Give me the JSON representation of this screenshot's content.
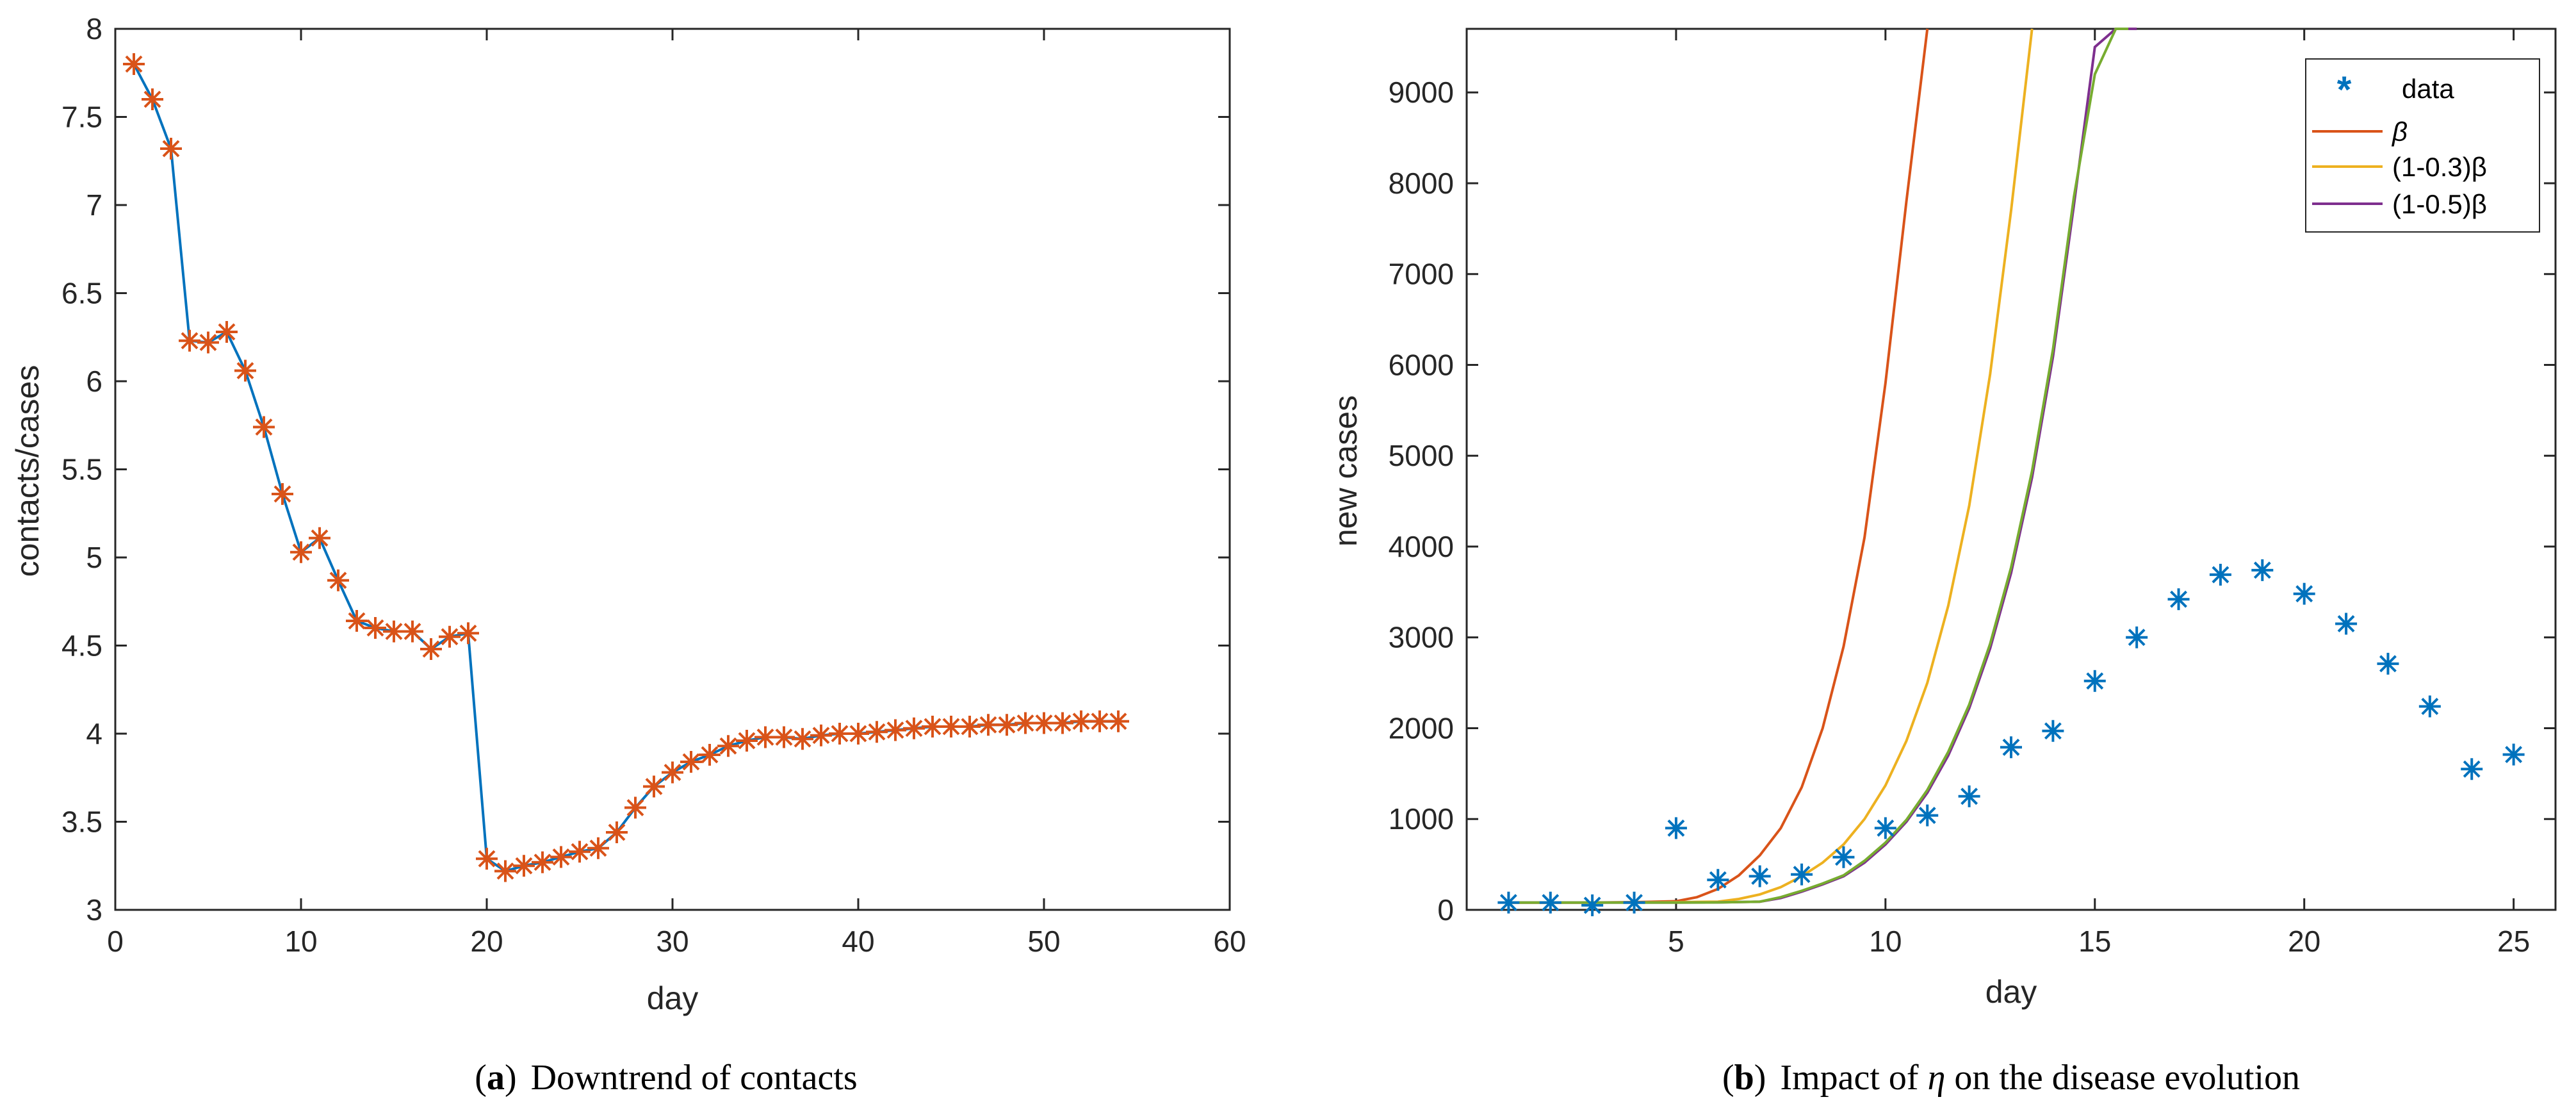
{
  "chart_data": [
    {
      "type": "line",
      "caption": {
        "open": "(",
        "letter": "a",
        "close": ")",
        "text": "Downtrend of contacts"
      },
      "xlabel": "day",
      "ylabel": "contacts/cases",
      "xlim": [
        0,
        60
      ],
      "ylim": [
        3,
        8
      ],
      "xticks": [
        "0",
        "10",
        "20",
        "30",
        "40",
        "50",
        "60"
      ],
      "yticks": [
        "3",
        "3.5",
        "4",
        "4.5",
        "5",
        "5.5",
        "6",
        "6.5",
        "7",
        "7.5",
        "8"
      ],
      "line_color": "#0072BD",
      "marker_color": "#D95319",
      "x": [
        1,
        2,
        3,
        4,
        5,
        6,
        7,
        8,
        9,
        10,
        11,
        12,
        13,
        14,
        15,
        16,
        17,
        18,
        19,
        20,
        21,
        22,
        23,
        24,
        25,
        26,
        27,
        28,
        29,
        30,
        31,
        32,
        33,
        34,
        35,
        36,
        37,
        38,
        39,
        40,
        41,
        42,
        43,
        44,
        45,
        46,
        47,
        48,
        49,
        50,
        51,
        52,
        53,
        54
      ],
      "y": [
        7.8,
        7.6,
        7.32,
        6.23,
        6.22,
        6.28,
        6.06,
        5.74,
        5.36,
        5.03,
        5.11,
        4.87,
        4.64,
        4.6,
        4.58,
        4.58,
        4.48,
        4.55,
        4.57,
        3.29,
        3.22,
        3.25,
        3.27,
        3.3,
        3.33,
        3.35,
        3.44,
        3.58,
        3.7,
        3.78,
        3.84,
        3.88,
        3.93,
        3.96,
        3.98,
        3.98,
        3.97,
        3.99,
        4.0,
        4.0,
        4.01,
        4.02,
        4.03,
        4.04,
        4.04,
        4.04,
        4.05,
        4.05,
        4.06,
        4.06,
        4.06,
        4.07,
        4.07,
        4.07
      ]
    },
    {
      "type": "line",
      "caption": {
        "open": "(",
        "letter": "b",
        "close": ")",
        "text_before": "Impact of",
        "symbol": "η",
        "text_after": "on the disease evolution"
      },
      "xlabel": "day",
      "ylabel": "new cases",
      "xlim": [
        0,
        26
      ],
      "ylim": [
        0,
        9700
      ],
      "xtick_values": [
        5,
        10,
        15,
        20,
        25
      ],
      "xticks": [
        "5",
        "10",
        "15",
        "20",
        "25"
      ],
      "ytick_values": [
        0,
        1000,
        2000,
        3000,
        4000,
        5000,
        6000,
        7000,
        8000,
        9000
      ],
      "yticks": [
        "0",
        "1000",
        "2000",
        "3000",
        "4000",
        "5000",
        "6000",
        "7000",
        "8000",
        "9000"
      ],
      "legend_position": "top-right",
      "scatter": {
        "name": "data",
        "color": "#0072BD",
        "x": [
          1,
          2,
          3,
          4,
          5,
          6,
          7,
          8,
          9,
          10,
          11,
          12,
          13,
          14,
          15,
          16,
          17,
          18,
          19,
          20,
          21,
          22,
          23,
          24,
          25
        ],
        "y": [
          80,
          80,
          50,
          80,
          900,
          330,
          370,
          390,
          580,
          900,
          1040,
          1250,
          1790,
          1970,
          2520,
          3000,
          3420,
          3690,
          3740,
          3480,
          3150,
          2710,
          2240,
          1550,
          1710
        ]
      },
      "series": [
        {
          "name": "β",
          "color": "#D95319",
          "x": [
            1,
            2,
            3,
            4,
            5,
            5.5,
            6,
            6.5,
            7,
            7.5,
            8,
            8.5,
            9,
            9.5,
            10,
            10.5,
            11
          ],
          "y": [
            80,
            80,
            80,
            85,
            95,
            140,
            230,
            380,
            600,
            900,
            1350,
            2000,
            2900,
            4100,
            5800,
            7800,
            9700
          ]
        },
        {
          "name": "(1-0.3)β",
          "color": "#EDB120",
          "x": [
            1,
            2,
            3,
            4,
            5,
            6,
            6.5,
            7,
            7.5,
            8,
            8.5,
            9,
            9.5,
            10,
            10.5,
            11,
            11.5,
            12,
            12.5,
            13,
            13.5
          ],
          "y": [
            80,
            80,
            80,
            82,
            85,
            90,
            120,
            170,
            250,
            370,
            520,
            720,
            1000,
            1370,
            1860,
            2500,
            3350,
            4450,
            5900,
            7700,
            9700
          ]
        },
        {
          "name": "(1-0.5)β",
          "color": "#7E2F8E",
          "x": [
            1,
            2,
            3,
            4,
            5,
            6,
            7,
            7.5,
            8,
            8.5,
            9,
            9.5,
            10,
            10.5,
            11,
            11.5,
            12,
            12.5,
            13,
            13.5,
            14,
            14.5,
            15,
            15.5,
            16
          ],
          "y": [
            80,
            80,
            80,
            80,
            80,
            82,
            90,
            130,
            200,
            280,
            370,
            520,
            720,
            970,
            1290,
            1700,
            2220,
            2880,
            3710,
            4760,
            6090,
            7760,
            9500,
            9700,
            9700
          ]
        }
      ],
      "extra_line": {
        "color": "#77AC30",
        "x": [
          1,
          2,
          3,
          4,
          5,
          6,
          7,
          7.5,
          8,
          8.5,
          9,
          9.5,
          10,
          10.5,
          11,
          11.5,
          12,
          12.5,
          13,
          13.5,
          14,
          14.5,
          15,
          15.5,
          15.8
        ],
        "y": [
          80,
          80,
          80,
          80,
          80,
          82,
          90,
          140,
          210,
          290,
          380,
          540,
          740,
          990,
          1320,
          1740,
          2260,
          2930,
          3770,
          4830,
          6170,
          7850,
          9200,
          9700,
          9700
        ]
      }
    }
  ]
}
